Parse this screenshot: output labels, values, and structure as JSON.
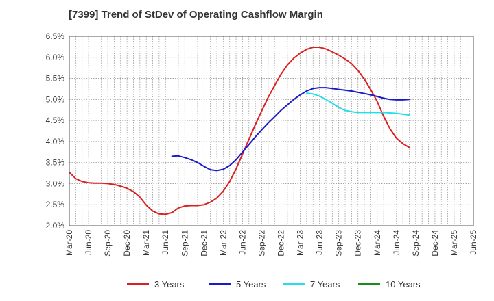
{
  "chart_data": {
    "type": "line",
    "title": "[7399]  Trend of StDev of Operating Cashflow Margin",
    "xlabel": "",
    "ylabel": "",
    "ylim": [
      2.0,
      6.5
    ],
    "y_ticks": [
      "2.0%",
      "2.5%",
      "3.0%",
      "3.5%",
      "4.0%",
      "4.5%",
      "5.0%",
      "5.5%",
      "6.0%",
      "6.5%"
    ],
    "x_ticks": [
      "Mar-20",
      "Jun-20",
      "Sep-20",
      "Dec-20",
      "Mar-21",
      "Jun-21",
      "Sep-21",
      "Dec-21",
      "Mar-22",
      "Jun-22",
      "Sep-22",
      "Dec-22",
      "Mar-23",
      "Jun-23",
      "Sep-23",
      "Dec-23",
      "Mar-24",
      "Jun-24",
      "Sep-24",
      "Dec-24",
      "Mar-25",
      "Jun-25"
    ],
    "grid": true,
    "legend_position": "bottom",
    "series": [
      {
        "name": "3 Years",
        "color": "#dd1f1f",
        "values": [
          3.27,
          3.12,
          3.05,
          3.02,
          3.01,
          3.01,
          3.0,
          2.98,
          2.94,
          2.89,
          2.81,
          2.68,
          2.49,
          2.35,
          2.28,
          2.27,
          2.31,
          2.42,
          2.47,
          2.48,
          2.48,
          2.5,
          2.56,
          2.66,
          2.82,
          3.05,
          3.35,
          3.7,
          4.05,
          4.4,
          4.73,
          5.05,
          5.33,
          5.6,
          5.82,
          5.98,
          6.1,
          6.19,
          6.24,
          6.24,
          6.2,
          6.13,
          6.05,
          5.96,
          5.85,
          5.69,
          5.48,
          5.23,
          4.95,
          4.6,
          4.3,
          4.08,
          3.95,
          3.86
        ]
      },
      {
        "name": "5 Years",
        "color": "#1a1ac8",
        "values": [
          null,
          null,
          null,
          null,
          null,
          null,
          null,
          null,
          null,
          null,
          null,
          null,
          null,
          null,
          null,
          null,
          3.65,
          3.66,
          3.62,
          3.57,
          3.5,
          3.41,
          3.33,
          3.31,
          3.34,
          3.43,
          3.57,
          3.75,
          3.93,
          4.11,
          4.28,
          4.44,
          4.59,
          4.74,
          4.87,
          5.0,
          5.11,
          5.2,
          5.26,
          5.28,
          5.28,
          5.26,
          5.24,
          5.22,
          5.2,
          5.17,
          5.14,
          5.11,
          5.07,
          5.03,
          5.0,
          4.99,
          4.99,
          5.0
        ]
      },
      {
        "name": "7 Years",
        "color": "#22e0e8",
        "values": [
          null,
          null,
          null,
          null,
          null,
          null,
          null,
          null,
          null,
          null,
          null,
          null,
          null,
          null,
          null,
          null,
          null,
          null,
          null,
          null,
          null,
          null,
          null,
          null,
          null,
          null,
          null,
          null,
          null,
          null,
          null,
          null,
          null,
          null,
          null,
          null,
          null,
          5.15,
          5.13,
          5.08,
          5.0,
          4.91,
          4.81,
          4.74,
          4.71,
          4.69,
          4.69,
          4.69,
          4.69,
          4.69,
          4.68,
          4.67,
          4.65,
          4.63
        ]
      },
      {
        "name": "10 Years",
        "color": "#1c8a1c",
        "values": []
      }
    ]
  }
}
